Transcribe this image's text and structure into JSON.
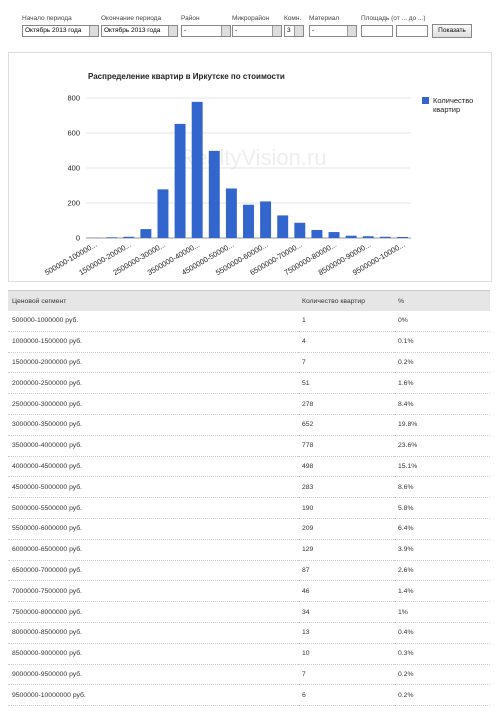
{
  "filters": [
    {
      "label": "Начало периода",
      "value": "Октябрь 2013 года"
    },
    {
      "label": "Окончание периода",
      "value": "Октябрь 2013 года"
    },
    {
      "label": "Район",
      "value": "-"
    },
    {
      "label": "Микрорайон",
      "value": "-"
    },
    {
      "label": "Комн.",
      "value": "3"
    },
    {
      "label": "Материал",
      "value": "-"
    }
  ],
  "area_label": "Площадь (от ... до ...)",
  "button": "Показать",
  "chart_data": {
    "type": "bar",
    "title": "Распределение квартир в Иркутске по стоимости",
    "watermark": "RealtyVision.ru",
    "categories": [
      "500000-100000...",
      null,
      "1500000-20000...",
      null,
      "2500000-30000...",
      null,
      "3500000-40000...",
      null,
      "4500000-50000...",
      null,
      "5500000-60000...",
      null,
      "6500000-70000...",
      null,
      "7500000-80000...",
      null,
      "8500000-90000...",
      null,
      "9500000-10000..."
    ],
    "series": [
      {
        "name": "Количество квартир",
        "color": "#3366cc",
        "values": [
          1,
          4,
          7,
          51,
          278,
          652,
          778,
          498,
          283,
          190,
          209,
          129,
          87,
          46,
          34,
          13,
          10,
          7,
          6
        ]
      }
    ],
    "ylim": [
      0,
      800
    ],
    "yticks": [
      0,
      200,
      400,
      600,
      800
    ],
    "grid": true,
    "legend": "right"
  },
  "table": {
    "header": [
      "Ценовой сегмент",
      "Количество квартир",
      "%"
    ],
    "rows": [
      [
        "500000-1000000 руб.",
        "1",
        "0%"
      ],
      [
        "1000000-1500000 руб.",
        "4",
        "0.1%"
      ],
      [
        "1500000-2000000 руб.",
        "7",
        "0.2%"
      ],
      [
        "2000000-2500000 руб.",
        "51",
        "1.6%"
      ],
      [
        "2500000-3000000 руб.",
        "278",
        "8.4%"
      ],
      [
        "3000000-3500000 руб.",
        "652",
        "19.8%"
      ],
      [
        "3500000-4000000 руб.",
        "778",
        "23.6%"
      ],
      [
        "4000000-4500000 руб.",
        "498",
        "15.1%"
      ],
      [
        "4500000-5000000 руб.",
        "283",
        "8.6%"
      ],
      [
        "5000000-5500000 руб.",
        "190",
        "5.8%"
      ],
      [
        "5500000-6000000 руб.",
        "209",
        "6.4%"
      ],
      [
        "6000000-6500000 руб.",
        "129",
        "3.9%"
      ],
      [
        "6500000-7000000 руб.",
        "87",
        "2.6%"
      ],
      [
        "7000000-7500000 руб.",
        "46",
        "1.4%"
      ],
      [
        "7500000-8000000 руб.",
        "34",
        "1%"
      ],
      [
        "8000000-8500000 руб.",
        "13",
        "0.4%"
      ],
      [
        "8500000-9000000 руб.",
        "10",
        "0.3%"
      ],
      [
        "9000000-9500000 руб.",
        "7",
        "0.2%"
      ],
      [
        "9500000-10000000 руб.",
        "6",
        "0.2%"
      ]
    ]
  }
}
